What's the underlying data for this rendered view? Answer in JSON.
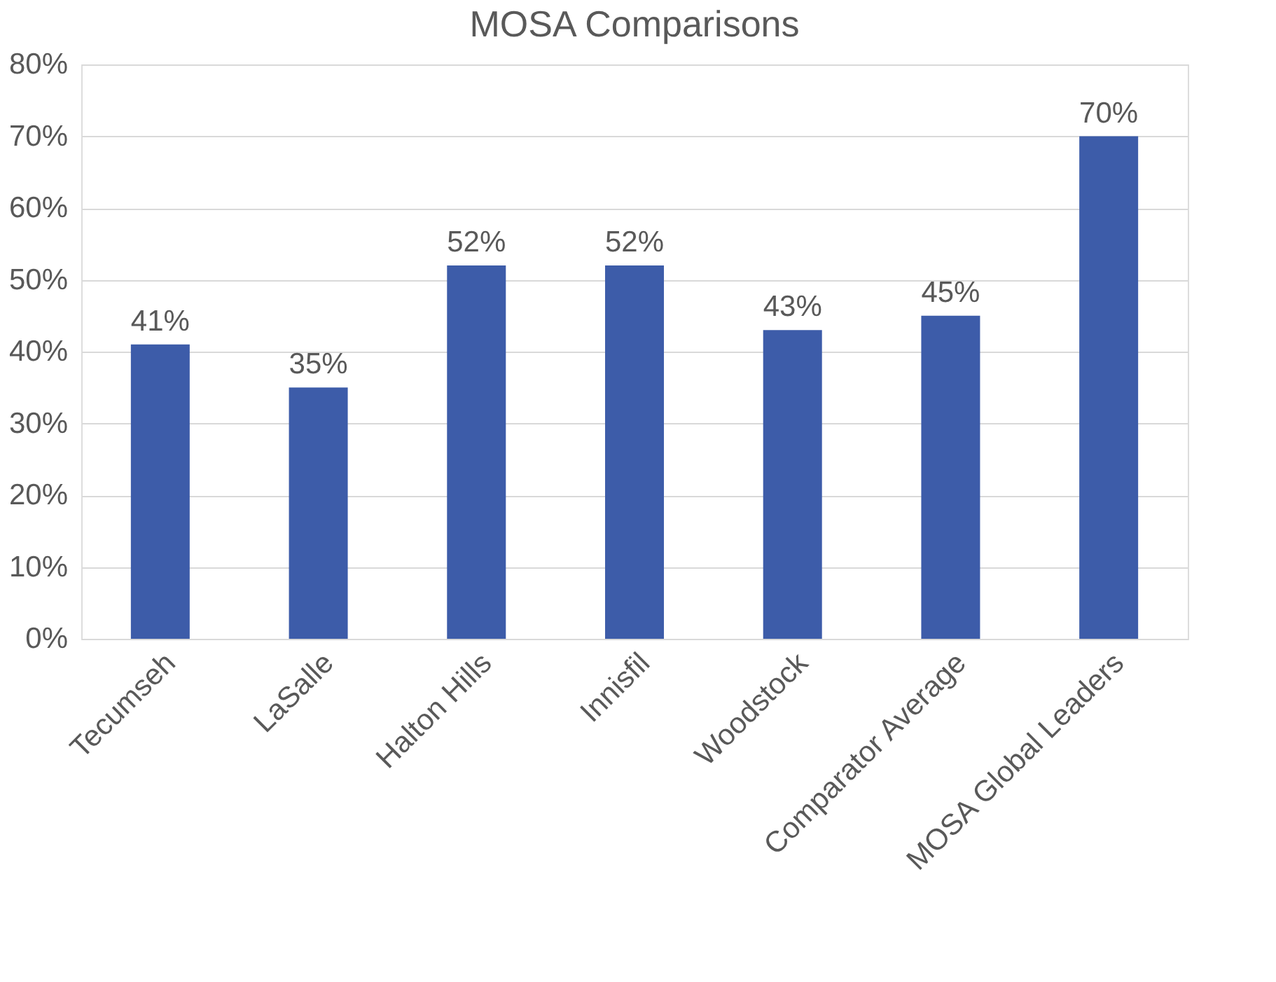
{
  "chart_data": {
    "type": "bar",
    "title": "MOSA Comparisons",
    "categories": [
      "Tecumseh",
      "LaSalle",
      "Halton Hills",
      "Innisfil",
      "Woodstock",
      "Comparator Average",
      "MOSA Global Leaders"
    ],
    "values": [
      41,
      35,
      52,
      52,
      43,
      45,
      70
    ],
    "value_labels": [
      "41%",
      "35%",
      "52%",
      "52%",
      "43%",
      "45%",
      "70%"
    ],
    "color": "#3d5ca9",
    "ylim": [
      0,
      80
    ],
    "yticks": [
      {
        "value": 0,
        "label": "0%"
      },
      {
        "value": 10,
        "label": "10%"
      },
      {
        "value": 20,
        "label": "20%"
      },
      {
        "value": 30,
        "label": "30%"
      },
      {
        "value": 40,
        "label": "40%"
      },
      {
        "value": 50,
        "label": "50%"
      },
      {
        "value": 60,
        "label": "60%"
      },
      {
        "value": 70,
        "label": "70%"
      },
      {
        "value": 80,
        "label": "80%"
      }
    ],
    "grid": "y"
  }
}
